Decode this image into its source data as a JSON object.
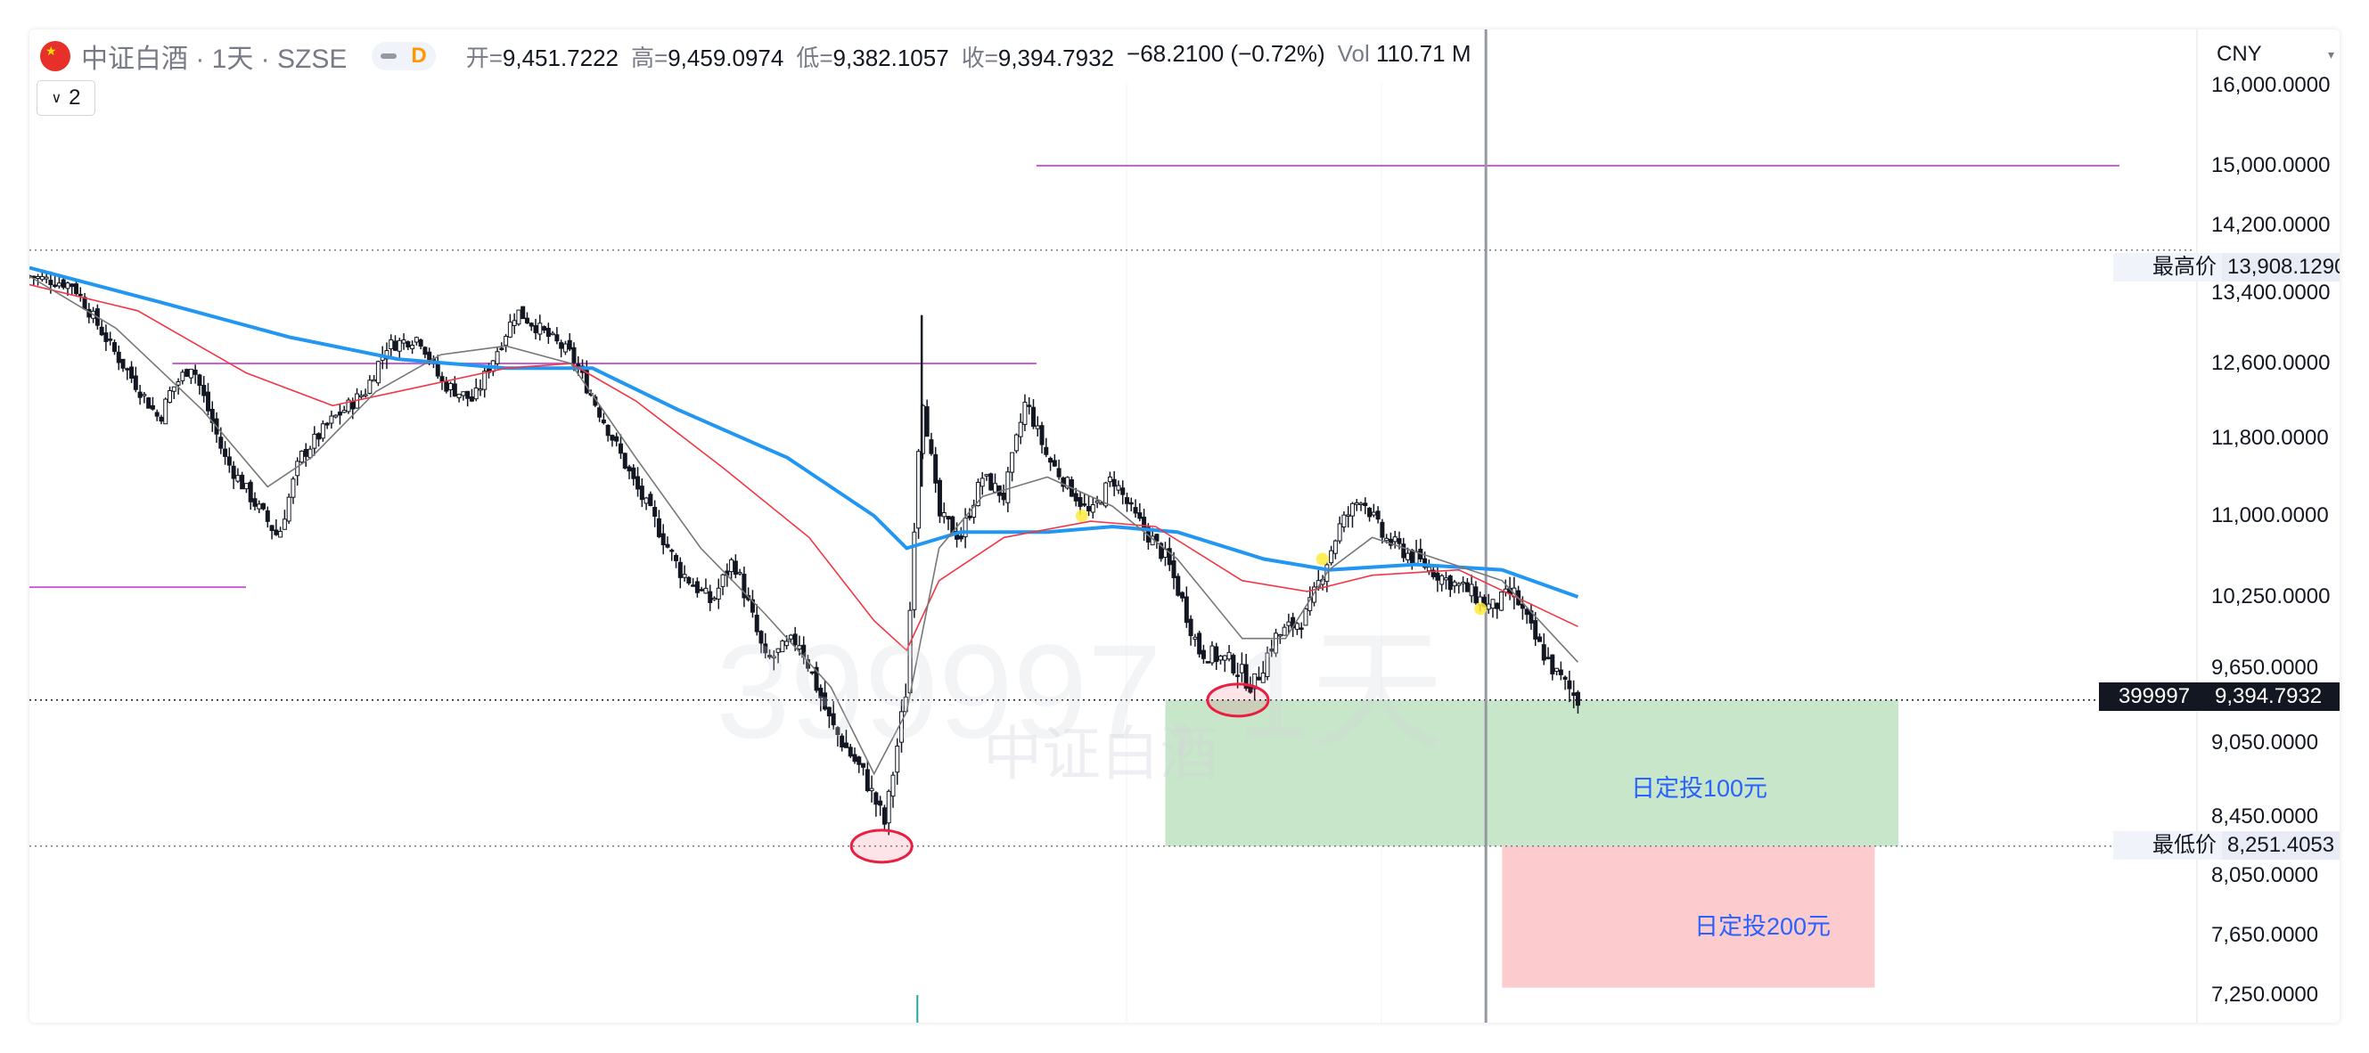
{
  "header": {
    "symbol_title": "中证白酒 · 1天 · SZSE",
    "interval_badge": "D",
    "ohlc": [
      {
        "k": "开=",
        "v": "9,451.7222"
      },
      {
        "k": "高=",
        "v": "9,459.0974"
      },
      {
        "k": "低=",
        "v": "9,382.1057"
      },
      {
        "k": "收=",
        "v": "9,394.7932"
      }
    ],
    "change": "−68.2100 (−0.72%)",
    "vol_label": "Vol",
    "vol_value": "110.71 M",
    "indicator_toggle": "2"
  },
  "currency": "CNY",
  "watermark": {
    "line1": "399997, 1天",
    "line2": "中证白酒"
  },
  "price_tags": {
    "high_label": "最高价",
    "high_value": "13,908.1290",
    "low_label": "最低价",
    "low_value": "8,251.4053",
    "symbol_code": "399997",
    "last_value": "9,394.7932"
  },
  "zones": {
    "buy100": "日定投100元",
    "buy200": "日定投200元"
  },
  "colors": {
    "ma_blue": "#2196f3",
    "ma_red": "#f23645",
    "ma_gray": "#777777",
    "level_line": "#c961d5",
    "zone_green": "#c8e6c9",
    "zone_red": "#fccbcd",
    "circle": "#e91e40",
    "marker_yellow": "#ffeb3b"
  },
  "chart_data": {
    "type": "candlestick",
    "price_range": [
      7000,
      16300
    ],
    "y_ticks": [
      {
        "v": 16000,
        "label": "16,000.0000"
      },
      {
        "v": 15000,
        "label": "15,000.0000"
      },
      {
        "v": 14200,
        "label": "14,200.0000"
      },
      {
        "v": 13400,
        "label": "13,400.0000"
      },
      {
        "v": 12600,
        "label": "12,600.0000"
      },
      {
        "v": 11800,
        "label": "11,800.0000"
      },
      {
        "v": 11000,
        "label": "11,000.0000"
      },
      {
        "v": 10250,
        "label": "10,250.0000"
      },
      {
        "v": 9650,
        "label": "9,650.0000"
      },
      {
        "v": 9050,
        "label": "9,050.0000"
      },
      {
        "v": 8450,
        "label": "8,450.0000"
      },
      {
        "v": 8050,
        "label": "8,050.0000"
      },
      {
        "v": 7650,
        "label": "7,650.0000"
      },
      {
        "v": 7250,
        "label": "7,250.0000"
      }
    ],
    "high_price": 13908.129,
    "low_price": 8251.4053,
    "last_close": 9394.7932,
    "levels": [
      {
        "price": 15000,
        "from": 0.465,
        "to": 0.965
      },
      {
        "price": 12600,
        "from": 0.066,
        "to": 0.465
      },
      {
        "price": 10340,
        "from": 0.0,
        "to": 0.1
      }
    ],
    "close_path": [
      {
        "t": 0.0,
        "p": 13600
      },
      {
        "t": 0.02,
        "p": 13500
      },
      {
        "t": 0.04,
        "p": 12700
      },
      {
        "t": 0.06,
        "p": 12000
      },
      {
        "t": 0.065,
        "p": 12300
      },
      {
        "t": 0.075,
        "p": 12600
      },
      {
        "t": 0.09,
        "p": 11600
      },
      {
        "t": 0.105,
        "p": 11100
      },
      {
        "t": 0.115,
        "p": 10800
      },
      {
        "t": 0.125,
        "p": 11600
      },
      {
        "t": 0.14,
        "p": 12000
      },
      {
        "t": 0.155,
        "p": 12300
      },
      {
        "t": 0.165,
        "p": 12800
      },
      {
        "t": 0.18,
        "p": 12900
      },
      {
        "t": 0.19,
        "p": 12400
      },
      {
        "t": 0.205,
        "p": 12200
      },
      {
        "t": 0.215,
        "p": 12700
      },
      {
        "t": 0.225,
        "p": 13200
      },
      {
        "t": 0.24,
        "p": 12900
      },
      {
        "t": 0.25,
        "p": 12700
      },
      {
        "t": 0.265,
        "p": 12000
      },
      {
        "t": 0.28,
        "p": 11300
      },
      {
        "t": 0.3,
        "p": 10500
      },
      {
        "t": 0.315,
        "p": 10200
      },
      {
        "t": 0.325,
        "p": 10600
      },
      {
        "t": 0.34,
        "p": 9700
      },
      {
        "t": 0.355,
        "p": 9900
      },
      {
        "t": 0.37,
        "p": 9200
      },
      {
        "t": 0.385,
        "p": 8800
      },
      {
        "t": 0.395,
        "p": 8400
      },
      {
        "t": 0.405,
        "p": 9500
      },
      {
        "t": 0.412,
        "p": 12300
      },
      {
        "t": 0.42,
        "p": 11000
      },
      {
        "t": 0.43,
        "p": 10800
      },
      {
        "t": 0.44,
        "p": 11400
      },
      {
        "t": 0.45,
        "p": 11200
      },
      {
        "t": 0.46,
        "p": 12200
      },
      {
        "t": 0.47,
        "p": 11600
      },
      {
        "t": 0.48,
        "p": 11300
      },
      {
        "t": 0.49,
        "p": 11000
      },
      {
        "t": 0.5,
        "p": 11400
      },
      {
        "t": 0.51,
        "p": 11000
      },
      {
        "t": 0.525,
        "p": 10600
      },
      {
        "t": 0.54,
        "p": 9800
      },
      {
        "t": 0.555,
        "p": 9700
      },
      {
        "t": 0.565,
        "p": 9500
      },
      {
        "t": 0.575,
        "p": 9900
      },
      {
        "t": 0.59,
        "p": 10100
      },
      {
        "t": 0.605,
        "p": 10900
      },
      {
        "t": 0.615,
        "p": 11200
      },
      {
        "t": 0.625,
        "p": 10800
      },
      {
        "t": 0.64,
        "p": 10600
      },
      {
        "t": 0.655,
        "p": 10400
      },
      {
        "t": 0.665,
        "p": 10300
      },
      {
        "t": 0.675,
        "p": 10150
      },
      {
        "t": 0.685,
        "p": 10300
      },
      {
        "t": 0.695,
        "p": 9900
      },
      {
        "t": 0.705,
        "p": 9600
      },
      {
        "t": 0.715,
        "p": 9395
      }
    ],
    "moving_averages": [
      {
        "name": "MA-blue",
        "points": [
          {
            "t": 0.0,
            "p": 13700
          },
          {
            "t": 0.06,
            "p": 13300
          },
          {
            "t": 0.12,
            "p": 12900
          },
          {
            "t": 0.17,
            "p": 12650
          },
          {
            "t": 0.22,
            "p": 12550
          },
          {
            "t": 0.26,
            "p": 12550
          },
          {
            "t": 0.3,
            "p": 12100
          },
          {
            "t": 0.35,
            "p": 11600
          },
          {
            "t": 0.39,
            "p": 11000
          },
          {
            "t": 0.405,
            "p": 10700
          },
          {
            "t": 0.43,
            "p": 10850
          },
          {
            "t": 0.47,
            "p": 10850
          },
          {
            "t": 0.5,
            "p": 10900
          },
          {
            "t": 0.53,
            "p": 10850
          },
          {
            "t": 0.57,
            "p": 10600
          },
          {
            "t": 0.6,
            "p": 10500
          },
          {
            "t": 0.64,
            "p": 10550
          },
          {
            "t": 0.68,
            "p": 10500
          },
          {
            "t": 0.715,
            "p": 10250
          }
        ]
      },
      {
        "name": "MA-red",
        "points": [
          {
            "t": 0.0,
            "p": 13500
          },
          {
            "t": 0.05,
            "p": 13200
          },
          {
            "t": 0.1,
            "p": 12500
          },
          {
            "t": 0.14,
            "p": 12150
          },
          {
            "t": 0.18,
            "p": 12350
          },
          {
            "t": 0.22,
            "p": 12550
          },
          {
            "t": 0.25,
            "p": 12600
          },
          {
            "t": 0.28,
            "p": 12200
          },
          {
            "t": 0.32,
            "p": 11500
          },
          {
            "t": 0.36,
            "p": 10800
          },
          {
            "t": 0.39,
            "p": 10050
          },
          {
            "t": 0.405,
            "p": 9800
          },
          {
            "t": 0.42,
            "p": 10400
          },
          {
            "t": 0.45,
            "p": 10800
          },
          {
            "t": 0.49,
            "p": 10950
          },
          {
            "t": 0.52,
            "p": 10900
          },
          {
            "t": 0.56,
            "p": 10400
          },
          {
            "t": 0.59,
            "p": 10300
          },
          {
            "t": 0.62,
            "p": 10450
          },
          {
            "t": 0.66,
            "p": 10500
          },
          {
            "t": 0.715,
            "p": 10000
          }
        ]
      },
      {
        "name": "MA-gray",
        "points": [
          {
            "t": 0.0,
            "p": 13600
          },
          {
            "t": 0.04,
            "p": 13000
          },
          {
            "t": 0.08,
            "p": 12100
          },
          {
            "t": 0.11,
            "p": 11300
          },
          {
            "t": 0.13,
            "p": 11600
          },
          {
            "t": 0.16,
            "p": 12300
          },
          {
            "t": 0.19,
            "p": 12700
          },
          {
            "t": 0.22,
            "p": 12800
          },
          {
            "t": 0.25,
            "p": 12600
          },
          {
            "t": 0.28,
            "p": 11600
          },
          {
            "t": 0.31,
            "p": 10700
          },
          {
            "t": 0.34,
            "p": 10100
          },
          {
            "t": 0.37,
            "p": 9500
          },
          {
            "t": 0.39,
            "p": 8800
          },
          {
            "t": 0.405,
            "p": 9300
          },
          {
            "t": 0.42,
            "p": 10700
          },
          {
            "t": 0.44,
            "p": 11200
          },
          {
            "t": 0.47,
            "p": 11400
          },
          {
            "t": 0.5,
            "p": 11100
          },
          {
            "t": 0.53,
            "p": 10600
          },
          {
            "t": 0.56,
            "p": 9900
          },
          {
            "t": 0.58,
            "p": 9900
          },
          {
            "t": 0.6,
            "p": 10500
          },
          {
            "t": 0.62,
            "p": 10800
          },
          {
            "t": 0.65,
            "p": 10600
          },
          {
            "t": 0.68,
            "p": 10400
          },
          {
            "t": 0.715,
            "p": 9700
          }
        ]
      }
    ],
    "zones": [
      {
        "name": "buy100",
        "from": 0.5245,
        "to": 0.863,
        "top": 9394.7932,
        "bottom": 8251.4053
      },
      {
        "name": "buy200",
        "from": 0.68,
        "to": 0.852,
        "top": 8251.4053,
        "bottom": 7300
      }
    ],
    "circles": [
      {
        "t": 0.3935,
        "p": 8251
      },
      {
        "t": 0.558,
        "p": 9394
      }
    ],
    "markers": [
      {
        "t": 0.486,
        "p": 11000
      },
      {
        "t": 0.597,
        "p": 10600
      },
      {
        "t": 0.67,
        "p": 10150
      }
    ],
    "crosshair_t": 0.6725,
    "volume_tick_t": 0.41
  }
}
